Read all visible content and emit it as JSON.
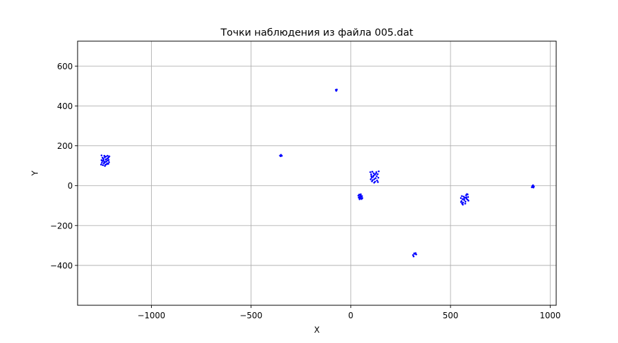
{
  "chart_data": {
    "type": "scatter",
    "title": "Точки наблюдения из файла 005.dat",
    "xlabel": "X",
    "ylabel": "Y",
    "xlim": [
      -1370,
      1030
    ],
    "ylim": [
      -600,
      725
    ],
    "xticks": [
      -1000,
      -500,
      0,
      500,
      1000
    ],
    "yticks": [
      -400,
      -200,
      0,
      200,
      400,
      600
    ],
    "xtick_labels": [
      "−1000",
      "−500",
      "0",
      "500",
      "1000"
    ],
    "ytick_labels": [
      "−400",
      "−200",
      "0",
      "200",
      "400",
      "600"
    ],
    "grid": true,
    "marker_color": "#0000ff",
    "points": [
      [
        -1250,
        152
      ],
      [
        -1245,
        140
      ],
      [
        -1240,
        128
      ],
      [
        -1236,
        150
      ],
      [
        -1232,
        118
      ],
      [
        -1228,
        146
      ],
      [
        -1225,
        133
      ],
      [
        -1222,
        112
      ],
      [
        -1220,
        150
      ],
      [
        -1218,
        126
      ],
      [
        -1215,
        141
      ],
      [
        -1212,
        118
      ],
      [
        -1248,
        115
      ],
      [
        -1252,
        106
      ],
      [
        -1243,
        103
      ],
      [
        -1238,
        112
      ],
      [
        -1230,
        105
      ],
      [
        -1226,
        122
      ],
      [
        -1219,
        137
      ],
      [
        -1214,
        129
      ],
      [
        -1241,
        135
      ],
      [
        -1234,
        142
      ],
      [
        -1246,
        124
      ],
      [
        -1223,
        108
      ],
      [
        -1237,
        120
      ],
      [
        -1229,
        131
      ],
      [
        -1216,
        110
      ],
      [
        -1250,
        128
      ],
      [
        -1211,
        147
      ],
      [
        -1233,
        99
      ],
      [
        -355,
        151
      ],
      [
        -350,
        155
      ],
      [
        -346,
        150
      ],
      [
        -352,
        148
      ],
      [
        -75,
        481
      ],
      [
        -72,
        478
      ],
      [
        -70,
        482
      ],
      [
        -73,
        476
      ],
      [
        98,
        68
      ],
      [
        102,
        57
      ],
      [
        105,
        40
      ],
      [
        108,
        70
      ],
      [
        110,
        28
      ],
      [
        112,
        45
      ],
      [
        115,
        62
      ],
      [
        118,
        33
      ],
      [
        120,
        55
      ],
      [
        122,
        20
      ],
      [
        125,
        38
      ],
      [
        128,
        68
      ],
      [
        130,
        48
      ],
      [
        132,
        26
      ],
      [
        135,
        58
      ],
      [
        138,
        40
      ],
      [
        140,
        72
      ],
      [
        136,
        18
      ],
      [
        100,
        32
      ],
      [
        106,
        22
      ],
      [
        114,
        50
      ],
      [
        126,
        60
      ],
      [
        117,
        15
      ],
      [
        103,
        48
      ],
      [
        38,
        -50
      ],
      [
        40,
        -60
      ],
      [
        42,
        -45
      ],
      [
        45,
        -55
      ],
      [
        47,
        -63
      ],
      [
        49,
        -48
      ],
      [
        52,
        -57
      ],
      [
        54,
        -67
      ],
      [
        56,
        -52
      ],
      [
        44,
        -68
      ],
      [
        50,
        -43
      ],
      [
        58,
        -62
      ],
      [
        312,
        -348
      ],
      [
        315,
        -355
      ],
      [
        320,
        -342
      ],
      [
        325,
        -338
      ],
      [
        328,
        -345
      ],
      [
        318,
        -340
      ],
      [
        552,
        -62
      ],
      [
        555,
        -78
      ],
      [
        558,
        -90
      ],
      [
        560,
        -68
      ],
      [
        563,
        -85
      ],
      [
        566,
        -55
      ],
      [
        569,
        -72
      ],
      [
        572,
        -60
      ],
      [
        575,
        -80
      ],
      [
        578,
        -48
      ],
      [
        580,
        -65
      ],
      [
        582,
        -42
      ],
      [
        585,
        -70
      ],
      [
        588,
        -57
      ],
      [
        590,
        -75
      ],
      [
        557,
        -52
      ],
      [
        574,
        -90
      ],
      [
        586,
        -44
      ],
      [
        562,
        -95
      ],
      [
        579,
        -58
      ],
      [
        567,
        -66
      ],
      [
        553,
        -82
      ],
      [
        908,
        -8
      ],
      [
        910,
        -3
      ],
      [
        912,
        -6
      ],
      [
        914,
        2
      ],
      [
        916,
        -9
      ],
      [
        918,
        -4
      ],
      [
        911,
        -1
      ]
    ]
  }
}
